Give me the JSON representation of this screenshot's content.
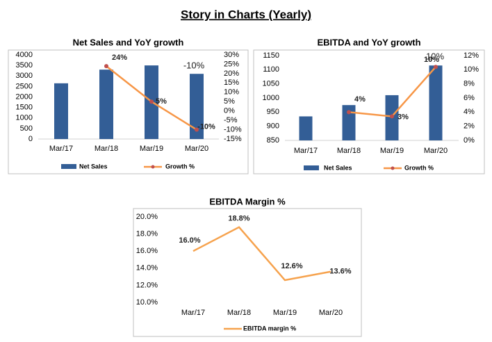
{
  "title": "Story in Charts (Yearly)",
  "chart_data": [
    {
      "type": "combo",
      "title": "Net Sales and YoY growth",
      "categories": [
        "Mar/17",
        "Mar/18",
        "Mar/19",
        "Mar/20"
      ],
      "series": [
        {
          "name": "Net Sales",
          "type": "bar",
          "color": "#335e96",
          "values": [
            2650,
            3300,
            3500,
            3100
          ]
        },
        {
          "name": "Growth %",
          "type": "line",
          "axis": "y2",
          "color": "#f79646",
          "marker_color": "#c0504d",
          "values": [
            null,
            24,
            5,
            -10
          ],
          "value_labels": [
            null,
            "24%",
            "5%",
            "-10%"
          ]
        }
      ],
      "ylim": [
        0,
        4000
      ],
      "yticks": [
        0,
        500,
        1000,
        1500,
        2000,
        2500,
        3000,
        3500,
        4000
      ],
      "y2lim": [
        -15,
        30
      ],
      "y2ticks": [
        {
          "value": -15,
          "label": "-15%"
        },
        {
          "value": -10,
          "label": "-10%"
        },
        {
          "value": -5,
          "label": "-5%"
        },
        {
          "value": 0,
          "label": "0%"
        },
        {
          "value": 5,
          "label": "5%"
        },
        {
          "value": 10,
          "label": "10%"
        },
        {
          "value": 15,
          "label": "15%"
        },
        {
          "value": 20,
          "label": "20%"
        },
        {
          "value": 25,
          "label": "25%"
        },
        {
          "value": 30,
          "label": "30%"
        }
      ],
      "annotations": [
        "-10%"
      ],
      "grid": false,
      "legend": "bottom"
    },
    {
      "type": "combo",
      "title": "EBITDA and YoY growth",
      "categories": [
        "Mar/17",
        "Mar/18",
        "Mar/19",
        "Mar/20"
      ],
      "series": [
        {
          "name": "Net Sales",
          "type": "bar",
          "color": "#335e96",
          "values": [
            935,
            975,
            1010,
            1115
          ]
        },
        {
          "name": "Growth %",
          "type": "line",
          "axis": "y2",
          "color": "#f79646",
          "marker_color": "#c0504d",
          "values": [
            null,
            4,
            3.4,
            10.4
          ],
          "value_labels": [
            null,
            "4%",
            "3%",
            "10%"
          ]
        }
      ],
      "ylim": [
        850,
        1150
      ],
      "yticks": [
        850,
        900,
        950,
        1000,
        1050,
        1100,
        1150
      ],
      "y2lim": [
        0,
        12
      ],
      "y2ticks": [
        {
          "value": 0,
          "label": "0%"
        },
        {
          "value": 2,
          "label": "2%"
        },
        {
          "value": 4,
          "label": "4%"
        },
        {
          "value": 6,
          "label": "6%"
        },
        {
          "value": 8,
          "label": "8%"
        },
        {
          "value": 10,
          "label": "10%"
        },
        {
          "value": 12,
          "label": "12%"
        }
      ],
      "annotations": [
        "10%"
      ],
      "grid": false,
      "legend": "bottom"
    },
    {
      "type": "line",
      "title": "EBITDA Margin %",
      "categories": [
        "Mar/17",
        "Mar/18",
        "Mar/19",
        "Mar/20"
      ],
      "series": [
        {
          "name": "EBITDA margin %",
          "type": "line",
          "color": "#f6a24d",
          "values": [
            16.0,
            18.8,
            12.6,
            13.6
          ],
          "value_labels": [
            "16.0%",
            "18.8%",
            "12.6%",
            "13.6%"
          ]
        }
      ],
      "ylim": [
        10,
        20
      ],
      "yticks": [
        {
          "value": 10,
          "label": "10.0%"
        },
        {
          "value": 12,
          "label": "12.0%"
        },
        {
          "value": 14,
          "label": "14.0%"
        },
        {
          "value": 16,
          "label": "16.0%"
        },
        {
          "value": 18,
          "label": "18.0%"
        },
        {
          "value": 20,
          "label": "20.0%"
        }
      ],
      "grid": false,
      "legend": "bottom"
    }
  ]
}
